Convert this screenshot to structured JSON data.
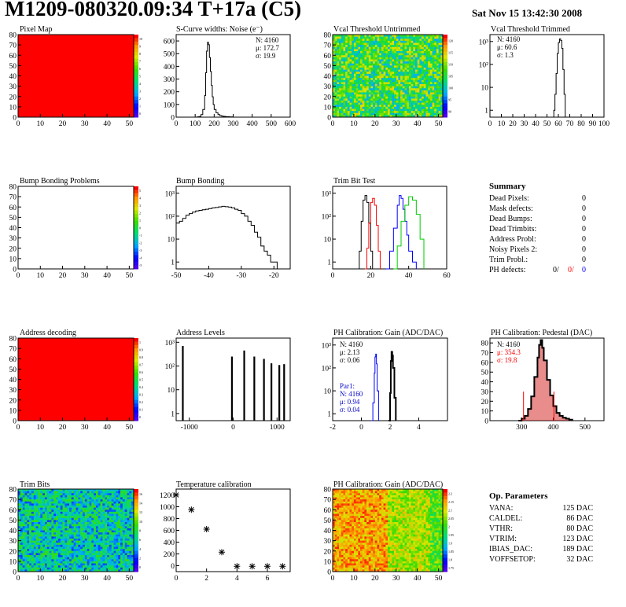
{
  "header": {
    "title": "M1209-080320.09:34 T+17a (C5)",
    "date": "Sat Nov 15 13:42:30 2008"
  },
  "colors": {
    "pixel_red": "#ff0000",
    "trim_black": "#000000",
    "trim_red": "#ff0000",
    "trim_blue": "#0000ff",
    "trim_green": "#00cc00",
    "pedestal_fill": "#cc0000",
    "stat_blue": "#0000cc"
  },
  "chart_data": [
    {
      "id": "pixel-map",
      "type": "heatmap",
      "title": "Pixel Map",
      "xlim": [
        0,
        52
      ],
      "ylim": [
        0,
        80
      ],
      "xticks": [
        0,
        10,
        20,
        30,
        40,
        50
      ],
      "yticks": [
        0,
        10,
        20,
        30,
        40,
        50,
        60,
        70,
        80
      ],
      "fill": "uniform-red",
      "zaxis": {
        "ticks": [
          "10",
          "9",
          "8",
          "7",
          "6",
          "5",
          "4",
          "3",
          "2",
          "1",
          "0"
        ]
      }
    },
    {
      "id": "scurve",
      "type": "line",
      "title": "S-Curve widths: Noise (e⁻)",
      "xlim": [
        0,
        600
      ],
      "ylim": [
        0,
        650
      ],
      "xticks": [
        0,
        100,
        200,
        300,
        400,
        500,
        600
      ],
      "yticks": [
        0,
        100,
        200,
        300,
        400,
        500,
        600
      ],
      "x": [
        100,
        110,
        120,
        130,
        140,
        150,
        155,
        160,
        165,
        170,
        175,
        180,
        185,
        190,
        195,
        200,
        210,
        220,
        230,
        240,
        250,
        260,
        280,
        300
      ],
      "y": [
        0,
        2,
        5,
        20,
        60,
        170,
        350,
        520,
        590,
        570,
        470,
        360,
        250,
        160,
        100,
        60,
        35,
        20,
        12,
        8,
        6,
        4,
        2,
        0
      ],
      "stats": [
        "N: 4160",
        "μ: 172.7",
        "σ: 19.9"
      ]
    },
    {
      "id": "vcal-untrimmed",
      "type": "heatmap",
      "title": "Vcal Threshold Untrimmed",
      "xlim": [
        0,
        52
      ],
      "ylim": [
        0,
        80
      ],
      "xticks": [
        0,
        10,
        20,
        30,
        40,
        50
      ],
      "yticks": [
        0,
        10,
        20,
        30,
        40,
        50,
        60,
        70,
        80
      ],
      "zaxis": {
        "ticks": [
          "120",
          "115",
          "110",
          "105",
          "100",
          "95",
          "90"
        ]
      }
    },
    {
      "id": "vcal-trimmed",
      "type": "line",
      "title": "Vcal Threshold Trimmed",
      "logy": true,
      "xlim": [
        0,
        100
      ],
      "ylim": [
        0.5,
        2000
      ],
      "xticks": [
        0,
        10,
        20,
        30,
        40,
        50,
        60,
        70,
        80,
        90,
        100
      ],
      "ytick_labels": [
        "1",
        "10",
        "10²",
        "10³"
      ],
      "x": [
        56,
        57,
        58,
        59,
        60,
        61,
        62,
        63,
        64,
        65,
        66
      ],
      "y": [
        1,
        5,
        40,
        300,
        900,
        1300,
        1100,
        500,
        60,
        5,
        1
      ],
      "stats": [
        "N: 4160",
        "μ: 60.6",
        "σ:  1.3"
      ]
    },
    {
      "id": "bump-problems",
      "type": "heatmap",
      "title": "Bump Bonding Problems",
      "xlim": [
        0,
        52
      ],
      "ylim": [
        0,
        80
      ],
      "xticks": [
        0,
        10,
        20,
        30,
        40,
        50
      ],
      "yticks": [
        0,
        10,
        20,
        30,
        40,
        50,
        60,
        70,
        80
      ],
      "fill": "empty",
      "zaxis": {
        "ticks": [
          "5",
          "4",
          "3",
          "2",
          "1",
          "0",
          "-1",
          "-2",
          "-3",
          "-4",
          "-5"
        ]
      }
    },
    {
      "id": "bump-bonding",
      "type": "line",
      "title": "Bump Bonding",
      "logy": true,
      "xlim": [
        -50,
        -15
      ],
      "ylim": [
        0.5,
        2000
      ],
      "xticks": [
        -50,
        -40,
        -30,
        -20
      ],
      "ytick_labels": [
        "1",
        "10",
        "10²",
        "10³"
      ],
      "x": [
        -50,
        -49,
        -48,
        -47,
        -46,
        -45,
        -44,
        -43,
        -42,
        -41,
        -40,
        -39,
        -38,
        -37,
        -36,
        -35,
        -34,
        -33,
        -32,
        -31,
        -30,
        -29,
        -28,
        -27,
        -26,
        -25,
        -24,
        -23,
        -22,
        -21,
        -20,
        -19
      ],
      "y": [
        50,
        60,
        80,
        110,
        130,
        150,
        170,
        180,
        190,
        200,
        215,
        230,
        240,
        255,
        270,
        260,
        250,
        230,
        200,
        180,
        130,
        100,
        60,
        40,
        20,
        12,
        5,
        3,
        2,
        1,
        1,
        0.5
      ]
    },
    {
      "id": "trim-bit-test",
      "type": "line",
      "title": "Trim Bit Test",
      "logy": true,
      "xlim": [
        0,
        60
      ],
      "ylim": [
        0.5,
        2000
      ],
      "xticks": [
        0,
        20,
        40,
        60
      ],
      "ytick_labels": [
        "1",
        "10",
        "10²",
        "10³"
      ],
      "series": [
        {
          "x": [
            13,
            14,
            15,
            16,
            17,
            18,
            19,
            20,
            21
          ],
          "y": [
            0.5,
            3,
            60,
            500,
            800,
            400,
            50,
            3,
            0.5
          ]
        },
        {
          "x": [
            17,
            18,
            19,
            20,
            21,
            22,
            23,
            24,
            25
          ],
          "y": [
            0.5,
            4,
            50,
            400,
            600,
            300,
            40,
            3,
            0.5
          ]
        },
        {
          "x": [
            28,
            30,
            32,
            34,
            35,
            36,
            37,
            38,
            39,
            40,
            42,
            44
          ],
          "y": [
            0.5,
            3,
            30,
            300,
            800,
            600,
            200,
            60,
            15,
            3,
            1,
            0.5
          ]
        },
        {
          "x": [
            32,
            34,
            36,
            38,
            40,
            42,
            44,
            46,
            48
          ],
          "y": [
            0.5,
            5,
            60,
            300,
            700,
            500,
            120,
            10,
            0.5
          ]
        }
      ]
    },
    {
      "id": "summary",
      "type": "table",
      "title": "Summary",
      "rows": [
        {
          "label": "Dead Pixels:",
          "value": "0"
        },
        {
          "label": "Mask defects:",
          "value": "0"
        },
        {
          "label": "Dead Bumps:",
          "value": "0"
        },
        {
          "label": "Dead Trimbits:",
          "value": "0"
        },
        {
          "label": "Address Probl:",
          "value": "0"
        },
        {
          "label": "Noisy Pixels 2:",
          "value": "0"
        },
        {
          "label": "Trim Probl.:",
          "value": "0"
        }
      ],
      "ph_defects": {
        "label": "PH defects:",
        "v1": "0/",
        "v2": "0/",
        "v3": "0"
      }
    },
    {
      "id": "address-decoding",
      "type": "heatmap",
      "title": "Address decoding",
      "xlim": [
        0,
        52
      ],
      "ylim": [
        0,
        80
      ],
      "xticks": [
        0,
        10,
        20,
        30,
        40,
        50
      ],
      "yticks": [
        0,
        10,
        20,
        30,
        40,
        50,
        60,
        70,
        80
      ],
      "fill": "uniform-red",
      "zaxis": {
        "ticks": [
          "1",
          "0.9",
          "0.8",
          "0.7",
          "0.6",
          "0.5",
          "0.4",
          "0.3",
          "0.2",
          "0.1",
          "0"
        ]
      }
    },
    {
      "id": "address-levels",
      "type": "bar",
      "title": "Address Levels",
      "logy": true,
      "xlim": [
        -1300,
        1300
      ],
      "ylim": [
        0.5,
        1500
      ],
      "xticks": [
        -1000,
        0,
        1000
      ],
      "ytick_labels": [
        "1",
        "10",
        "10²",
        "10³"
      ],
      "peaks": [
        -1150,
        -30,
        250,
        480,
        700,
        870,
        1050,
        1160
      ],
      "heights": [
        700,
        250,
        450,
        250,
        200,
        130,
        110,
        120
      ]
    },
    {
      "id": "ph-gain",
      "type": "line",
      "title": "PH Calibration: Gain (ADC/DAC)",
      "logy": true,
      "xlim": [
        -2,
        6
      ],
      "ylim": [
        0.5,
        2000
      ],
      "xticks": [
        -2,
        0,
        2,
        4
      ],
      "ytick_labels": [
        "1",
        "10",
        "10²",
        "10³"
      ],
      "series": [
        {
          "x": [
            0.7,
            0.8,
            0.9,
            0.95,
            1.0,
            1.05,
            1.1,
            1.2
          ],
          "y": [
            0.5,
            3,
            60,
            300,
            400,
            150,
            10,
            0.5
          ]
        },
        {
          "x": [
            1.9,
            2.0,
            2.05,
            2.1,
            2.15,
            2.2,
            2.3,
            2.4
          ],
          "y": [
            0.5,
            8,
            200,
            500,
            350,
            100,
            5,
            0.5
          ]
        }
      ],
      "stats": [
        "N: 4160",
        "μ: 2.13",
        "σ: 0.06"
      ],
      "stats2": [
        "Par1:",
        "N: 4160",
        "μ: 0.94",
        "σ: 0.04"
      ]
    },
    {
      "id": "ph-pedestal",
      "type": "line",
      "title": "PH Calibration: Pedestal (DAC)",
      "xlim": [
        200,
        560
      ],
      "ylim": [
        0,
        85
      ],
      "xticks": [
        300,
        400,
        500
      ],
      "yticks": [
        0,
        10,
        20,
        30,
        40,
        50,
        60,
        70,
        80
      ],
      "x": [
        290,
        300,
        310,
        320,
        330,
        340,
        350,
        355,
        360,
        365,
        370,
        380,
        390,
        400,
        410,
        420,
        430,
        440,
        450,
        460
      ],
      "y": [
        0,
        2,
        5,
        12,
        25,
        45,
        65,
        78,
        83,
        75,
        62,
        42,
        26,
        15,
        8,
        5,
        3,
        2,
        1,
        0
      ],
      "markers": [
        306,
        402
      ],
      "stats": [
        "N: 4160",
        "μ: 354.3",
        "σ: 19.8"
      ]
    },
    {
      "id": "trim-bits",
      "type": "heatmap",
      "title": "Trim Bits",
      "xlim": [
        0,
        52
      ],
      "ylim": [
        0,
        80
      ],
      "xticks": [
        0,
        10,
        20,
        30,
        40,
        50
      ],
      "yticks": [
        0,
        10,
        20,
        30,
        40,
        50,
        60,
        70,
        80
      ],
      "zaxis": {
        "ticks": [
          "16",
          "14",
          "12",
          "10",
          "8",
          "6",
          "4",
          "2",
          "0"
        ]
      }
    },
    {
      "id": "temperature",
      "type": "scatter",
      "title": "Temperature calibration",
      "xlim": [
        0,
        7.5
      ],
      "ylim": [
        -100,
        1300
      ],
      "xticks": [
        0,
        2,
        4,
        6
      ],
      "yticks": [
        0,
        200,
        400,
        600,
        800,
        1000,
        1200
      ],
      "x": [
        0,
        1,
        2,
        3,
        4,
        5,
        6,
        7
      ],
      "y": [
        1200,
        950,
        620,
        230,
        -10,
        -10,
        -10,
        -10
      ]
    },
    {
      "id": "ph-gain-map",
      "type": "heatmap",
      "title": "PH Calibration: Gain (ADC/DAC)",
      "xlim": [
        0,
        52
      ],
      "ylim": [
        0,
        80
      ],
      "xticks": [
        0,
        10,
        20,
        30,
        40,
        50
      ],
      "yticks": [
        0,
        10,
        20,
        30,
        40,
        50,
        60,
        70,
        80
      ],
      "zaxis": {
        "ticks": [
          "2.2",
          "2.15",
          "2.1",
          "2.05",
          "2",
          "1.95",
          "1.9",
          "1.85",
          "1.8",
          "1.75"
        ]
      }
    },
    {
      "id": "op-parameters",
      "type": "table",
      "title": "Op. Parameters",
      "rows": [
        {
          "label": "VANA:",
          "value": "125 DAC"
        },
        {
          "label": "CALDEL:",
          "value": "86 DAC"
        },
        {
          "label": "VTHR:",
          "value": "80 DAC"
        },
        {
          "label": "VTRIM:",
          "value": "123 DAC"
        },
        {
          "label": "IBIAS_DAC:",
          "value": "189 DAC"
        },
        {
          "label": "VOFFSETOP:",
          "value": "32 DAC"
        }
      ]
    }
  ]
}
